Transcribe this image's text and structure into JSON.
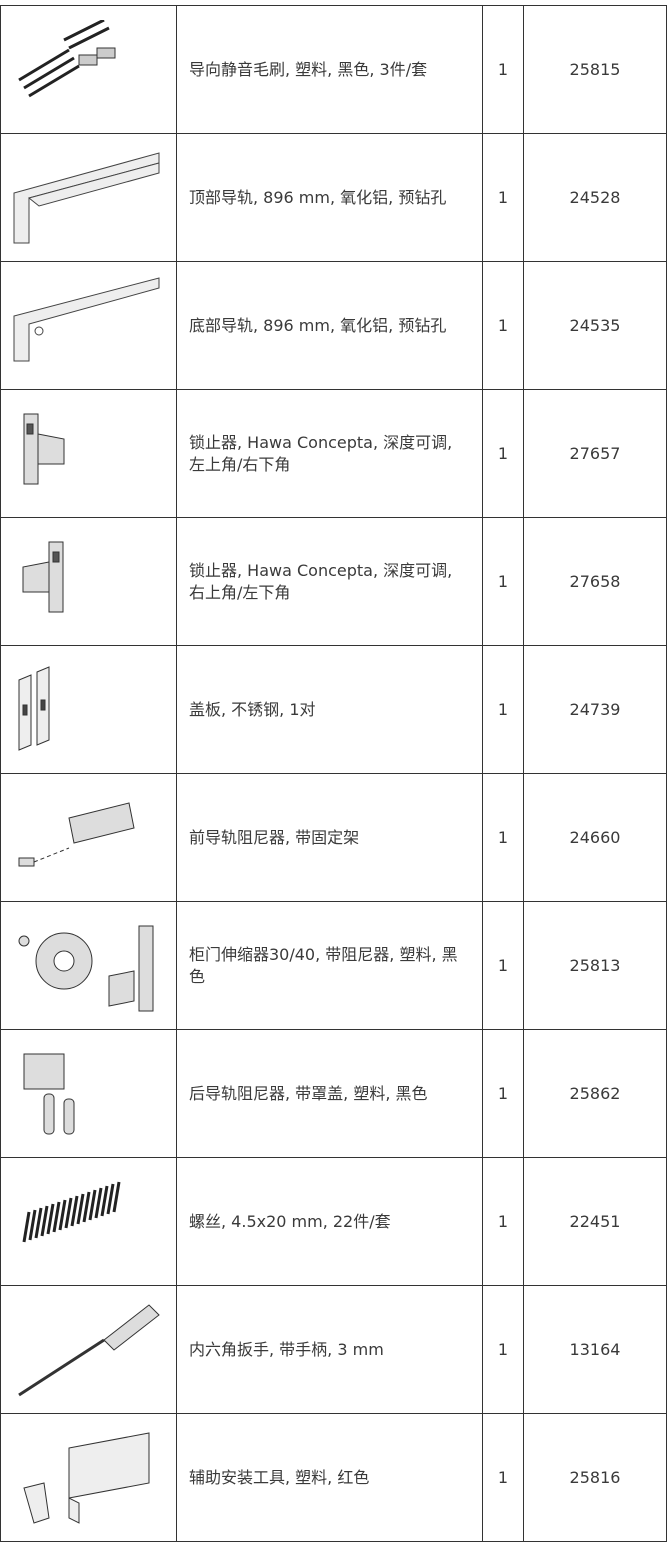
{
  "table": {
    "rows": [
      [
        "导向静音毛刷, 塑料, 黑色, 3件/套",
        "1",
        "25815"
      ],
      [
        "顶部导轨, 896 mm, 氧化铝, 预钻孔",
        "1",
        "24528"
      ],
      [
        "底部导轨, 896 mm, 氧化铝, 预钻孔",
        "1",
        "24535"
      ],
      [
        "锁止器, Hawa Concepta, 深度可调, 左上角/右下角",
        "1",
        "27657"
      ],
      [
        "锁止器, Hawa Concepta, 深度可调, 右上角/左下角",
        "1",
        "27658"
      ],
      [
        "盖板, 不锈钢, 1对",
        "1",
        "24739"
      ],
      [
        "前导轨阻尼器, 带固定架",
        "1",
        "24660"
      ],
      [
        "柜门伸缩器30/40, 带阻尼器, 塑料, 黑色",
        "1",
        "25813"
      ],
      [
        "后导轨阻尼器, 带罩盖, 塑料, 黑色",
        "1",
        "25862"
      ],
      [
        "螺丝, 4.5x20 mm, 22件/套",
        "1",
        "22451"
      ],
      [
        "内六角扳手, 带手柄, 3 mm",
        "1",
        "13164"
      ],
      [
        "辅助安装工具, 塑料, 红色",
        "1",
        "25816"
      ]
    ]
  }
}
